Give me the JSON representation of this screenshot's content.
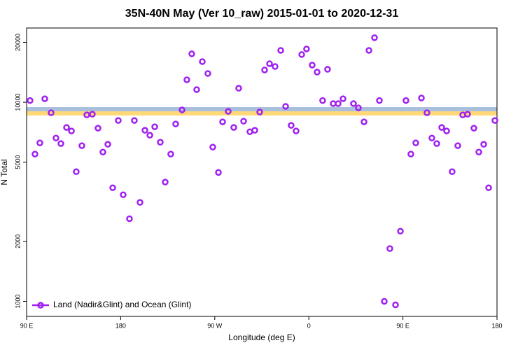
{
  "chart_data": {
    "type": "scatter",
    "title": "35N-40N May (Ver 10_raw)   2015-01-01 to 2020-12-31",
    "x_label": "Longitude (deg E)",
    "y_label": "N Total",
    "log_y": true,
    "grid": false,
    "legend_position": "bottom-left",
    "xlim": [
      90,
      540
    ],
    "ylim": [
      840,
      23600
    ],
    "xticks": [
      {
        "value": 90,
        "label": "90 E"
      },
      180,
      {
        "value": 270,
        "label": "90 W"
      },
      {
        "value": 360,
        "label": "0"
      },
      {
        "value": 450,
        "label": "90 E"
      },
      {
        "value": 540,
        "label": "180"
      }
    ],
    "yticks": [
      1000,
      2000,
      5000,
      10000,
      20000
    ],
    "x": [
      93.3,
      98.0,
      102.7,
      107.4,
      113.4,
      118.1,
      122.8,
      128.2,
      132.9,
      137.5,
      142.9,
      147.6,
      152.9,
      158.3,
      163.0,
      167.7,
      172.4,
      177.7,
      182.4,
      188.4,
      193.1,
      198.5,
      203.2,
      207.9,
      212.6,
      217.9,
      222.6,
      227.9,
      232.6,
      238.7,
      243.3,
      248.0,
      252.7,
      258.1,
      263.4,
      268.1,
      273.5,
      277.5,
      282.9,
      288.2,
      292.9,
      297.6,
      303.6,
      308.3,
      313.0,
      317.7,
      322.4,
      327.7,
      333.1,
      337.8,
      343.1,
      347.8,
      353.2,
      357.8,
      363.2,
      367.9,
      373.2,
      377.9,
      383.3,
      388.0,
      392.7,
      402.7,
      407.4,
      412.8,
      417.5,
      422.8,
      427.5,
      432.2,
      437.5,
      442.9,
      447.6,
      452.9,
      457.6,
      462.3,
      467.7,
      473.0,
      477.7,
      482.4,
      487.1,
      491.8,
      497.1,
      502.5,
      507.2,
      511.8,
      517.9,
      522.6,
      527.3,
      532.0,
      538.0
    ],
    "series": [
      {
        "name": "Land (Nadir&Glint) and Ocean (Glint)",
        "color": "#a020f0",
        "values": [
          10200,
          5490,
          6250,
          10410,
          8850,
          6610,
          6200,
          7470,
          7170,
          4480,
          6050,
          8640,
          8710,
          7410,
          5620,
          6150,
          3720,
          8100,
          3430,
          2600,
          8100,
          3140,
          7230,
          6830,
          7530,
          6300,
          3970,
          5490,
          7780,
          9150,
          12960,
          17500,
          11570,
          16000,
          13950,
          5950,
          4440,
          7970,
          9000,
          7470,
          11760,
          8030,
          7110,
          7230,
          8930,
          14520,
          15620,
          15120,
          18220,
          9530,
          7650,
          7170,
          17360,
          18520,
          15370,
          14170,
          10200,
          14640,
          9840,
          9840,
          10410,
          9840,
          9370,
          7970,
          18220,
          21090,
          10200,
          1000,
          1840,
          960,
          2250,
          10200,
          5490,
          6250,
          10500,
          8850,
          6610,
          6200,
          7470,
          7170,
          4480,
          6050,
          8640,
          8710,
          7410,
          5620,
          6150,
          3720,
          8100
        ]
      }
    ]
  }
}
